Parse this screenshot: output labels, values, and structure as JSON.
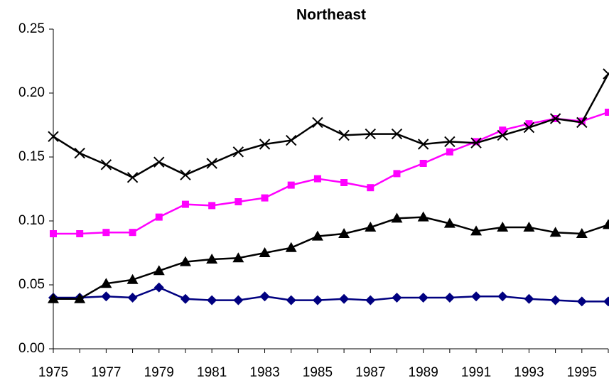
{
  "chart_data": {
    "type": "line",
    "title": "Northeast",
    "categories": [
      "1975",
      null,
      "1977",
      null,
      "1979",
      null,
      "1981",
      null,
      "1983",
      null,
      "1985",
      null,
      "1987",
      null,
      "1989",
      null,
      "1991",
      null,
      "1993",
      null,
      "1995",
      null
    ],
    "series": [
      {
        "color": "#000080",
        "marker": "diamond",
        "values": [
          0.04,
          0.04,
          0.041,
          0.04,
          0.048,
          0.039,
          0.038,
          0.038,
          0.041,
          0.038,
          0.038,
          0.039,
          0.038,
          0.04,
          0.04,
          0.04,
          0.041,
          0.041,
          0.039,
          0.038,
          0.037,
          0.037
        ]
      },
      {
        "color": "#000000",
        "marker": "triangle",
        "values": [
          0.039,
          0.039,
          0.051,
          0.054,
          0.061,
          0.068,
          0.07,
          0.071,
          0.075,
          0.079,
          0.088,
          0.09,
          0.095,
          0.102,
          0.103,
          0.098,
          0.092,
          0.095,
          0.095,
          0.091,
          0.09,
          0.097
        ]
      },
      {
        "color": "#ff00ff",
        "marker": "square",
        "values": [
          0.09,
          0.09,
          0.091,
          0.091,
          0.103,
          0.113,
          0.112,
          0.115,
          0.118,
          0.128,
          0.133,
          0.13,
          0.126,
          0.137,
          0.145,
          0.154,
          0.162,
          0.171,
          0.176,
          0.18,
          0.178,
          0.185
        ]
      },
      {
        "color": "#000000",
        "marker": "cross",
        "values": [
          0.166,
          0.153,
          0.144,
          0.134,
          0.146,
          0.136,
          0.145,
          0.154,
          0.16,
          0.163,
          0.177,
          0.167,
          0.168,
          0.168,
          0.16,
          0.162,
          0.161,
          0.167,
          0.173,
          0.18,
          0.177,
          0.215
        ]
      }
    ],
    "ylim": [
      0,
      0.25
    ],
    "yticks": [
      {
        "value": 0,
        "label": "0.00"
      },
      0.05,
      {
        "value": 0.1,
        "label": "0.10"
      },
      0.15,
      {
        "value": 0.2,
        "label": "0.20"
      },
      0.25
    ],
    "grid": false
  }
}
